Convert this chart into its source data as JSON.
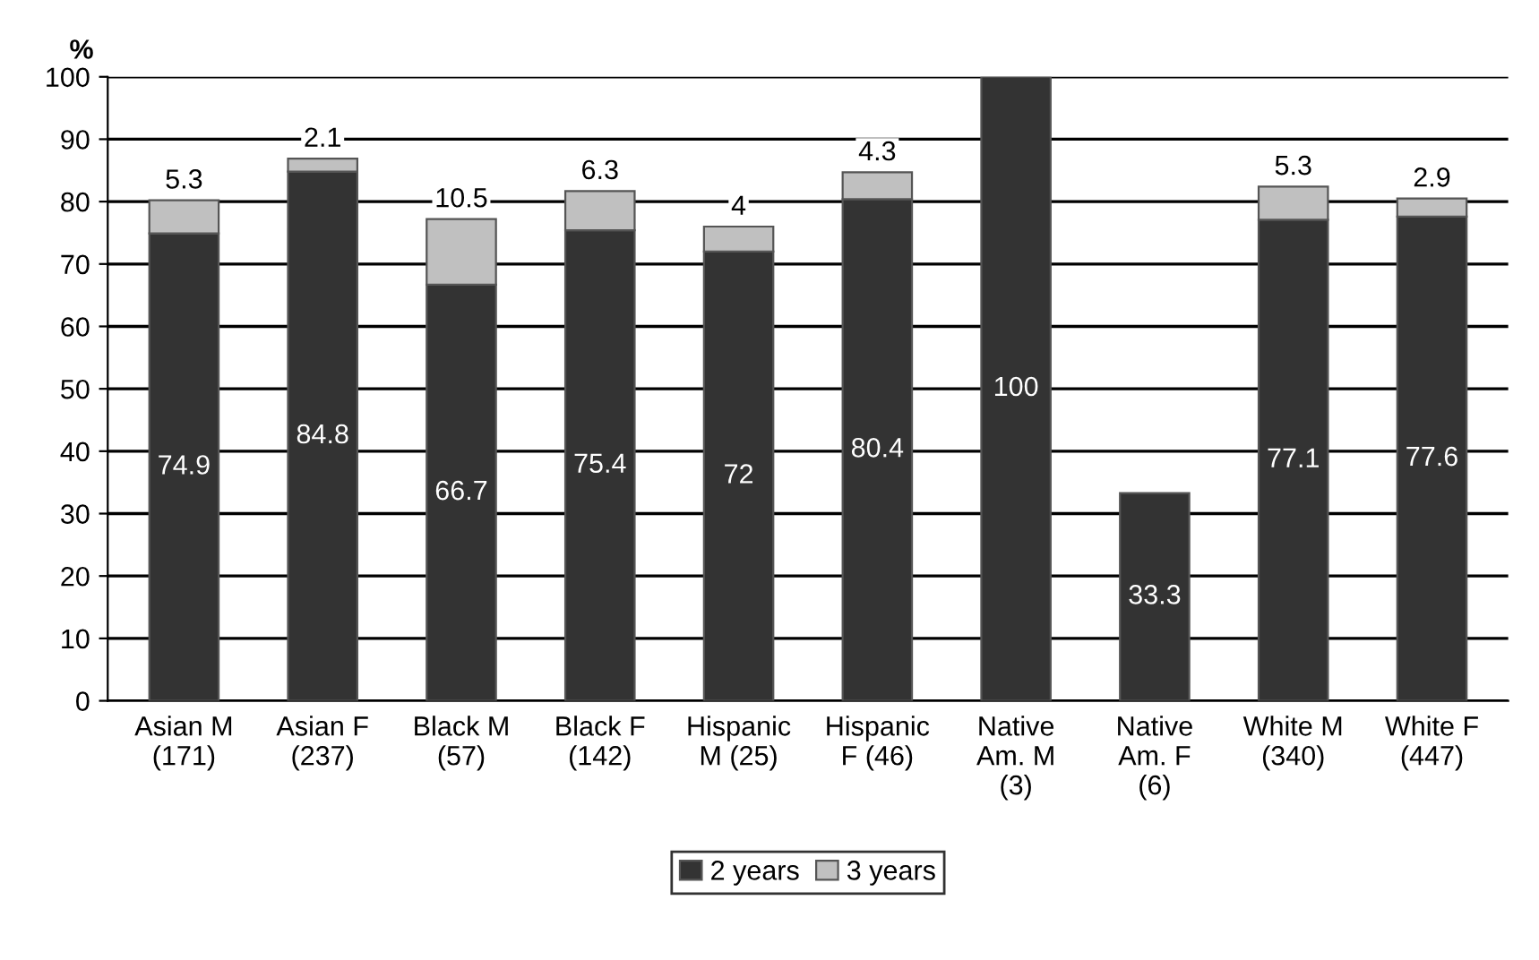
{
  "chart_data": {
    "type": "bar",
    "stacked": true,
    "ylabel": "%",
    "categories": [
      "Asian M\n(171)",
      "Asian F\n(237)",
      "Black M\n(57)",
      "Black F\n(142)",
      "Hispanic\nM (25)",
      "Hispanic\nF (46)",
      "Native\nAm. M\n(3)",
      "Native\nAm. F\n(6)",
      "White M\n(340)",
      "White F\n(447)"
    ],
    "series": [
      {
        "name": "2 years",
        "color": "#333333",
        "values": [
          74.9,
          84.8,
          66.7,
          75.4,
          72,
          80.4,
          100,
          33.3,
          77.1,
          77.6
        ]
      },
      {
        "name": "3 years",
        "color": "#c0c0c0",
        "values": [
          5.3,
          2.1,
          10.5,
          6.3,
          4,
          4.3,
          null,
          null,
          5.3,
          2.9
        ]
      }
    ],
    "ylim": [
      0,
      100
    ],
    "yticks": [
      0,
      10,
      20,
      30,
      40,
      50,
      60,
      70,
      80,
      90,
      100
    ],
    "grid": "y",
    "legend": "bottom",
    "data_labels": true
  }
}
